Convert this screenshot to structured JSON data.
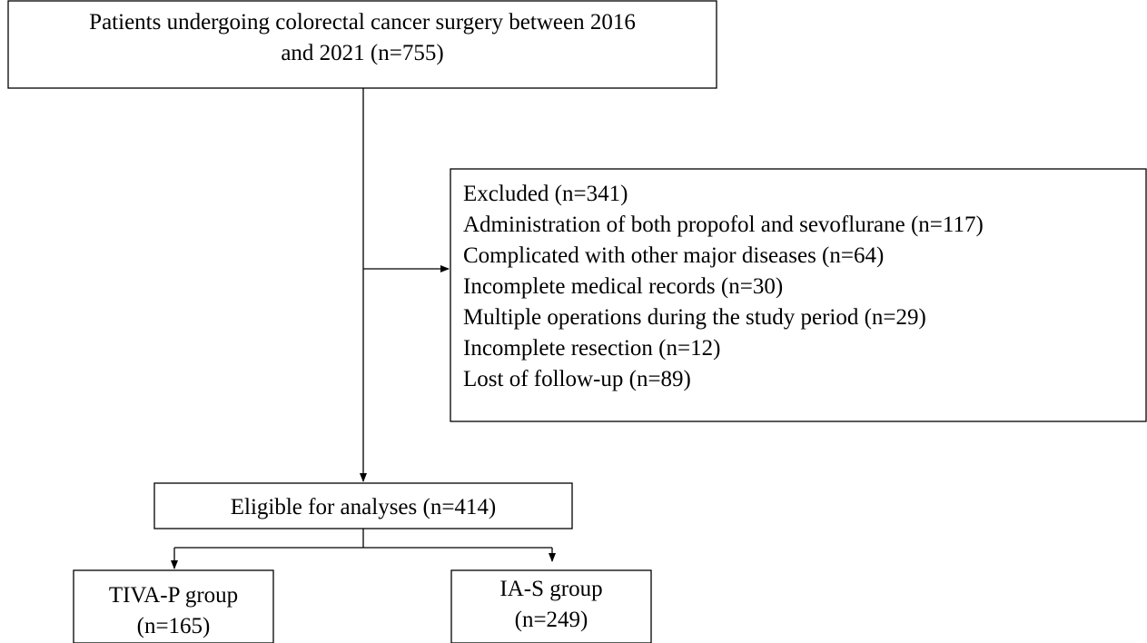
{
  "nodes": [
    {
      "lines": [
        "Patients undergoing colorectal cancer surgery between 2016",
        "and 2021 (n=755)"
      ]
    },
    {
      "lines": [
        "Excluded (n=341)",
        "Administration of both propofol and sevoflurane (n=117)",
        "Complicated with other major diseases (n=64)",
        "Incomplete medical records (n=30)",
        "Multiple operations during the study period (n=29)",
        "Incomplete resection (n=12)",
        "Lost of follow-up (n=89)"
      ]
    },
    {
      "lines": [
        "Eligible for analyses (n=414)"
      ]
    },
    {
      "lines": [
        "TIVA-P group",
        "(n=165)"
      ]
    },
    {
      "lines": [
        "IA-S group",
        "(n=249)"
      ]
    }
  ]
}
